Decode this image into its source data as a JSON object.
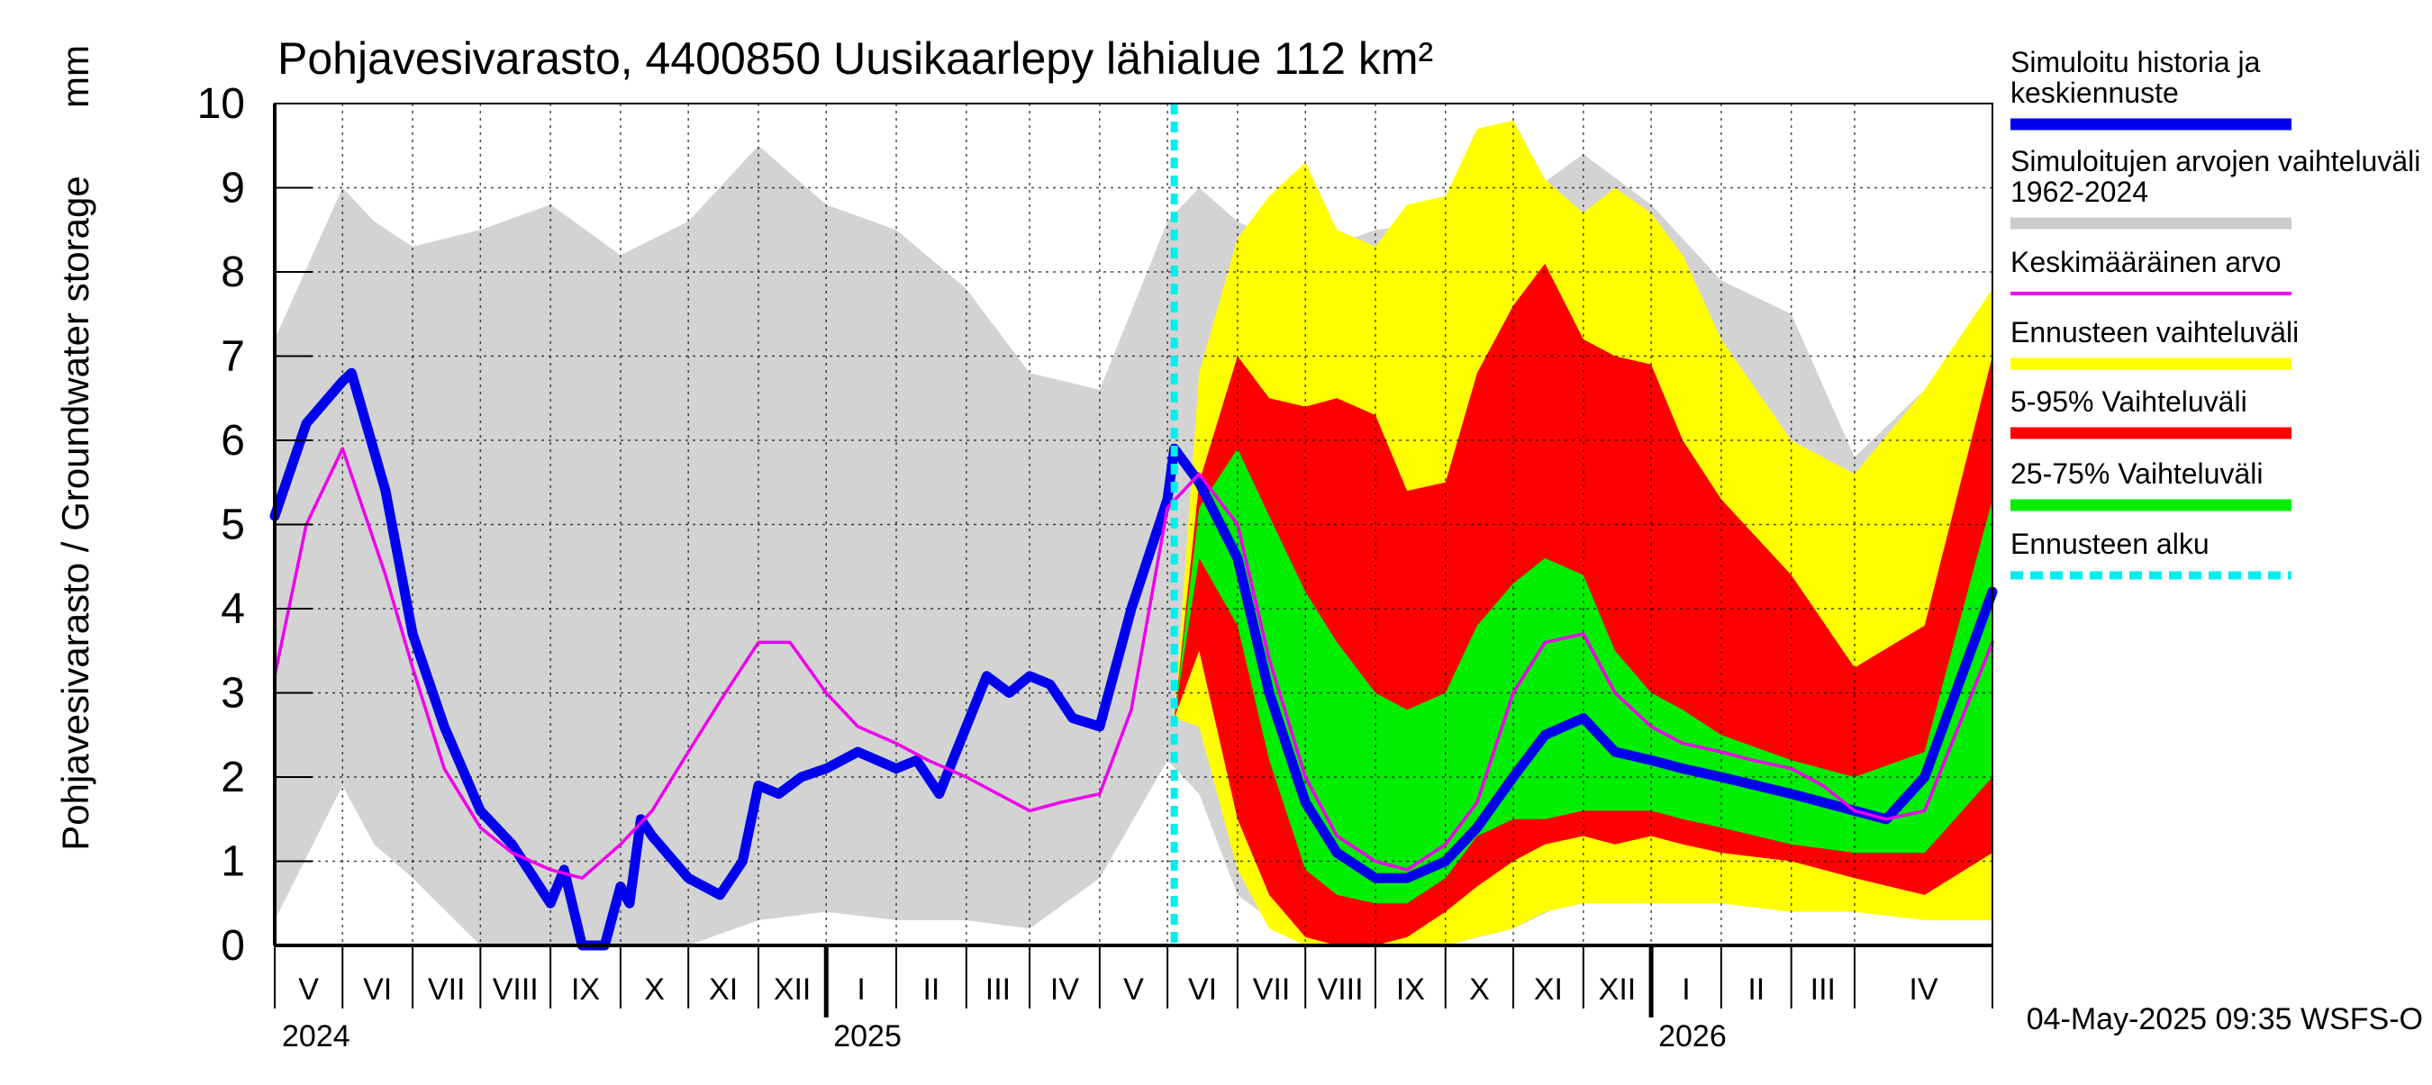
{
  "chart_data": {
    "type": "area",
    "title": "Pohjavesivarasto, 4400850 Uusikaarlepy lähialue 112 km²",
    "ylabel": "Pohjavesivarasto / Groundwater storage",
    "yunit": "mm",
    "ylim": [
      0,
      10
    ],
    "yticks": [
      0,
      1,
      2,
      3,
      4,
      5,
      6,
      7,
      8,
      9,
      10
    ],
    "xlim": [
      "2024-04-01",
      "2026-05-01"
    ],
    "forecast_start": "2025-05-04",
    "grid": true,
    "legend_position": "right",
    "footer": "04-May-2025 09:35 WSFS-O",
    "months": [
      {
        "label": "V",
        "start": "2024-04-01"
      },
      {
        "label": "VI",
        "start": "2024-05-01"
      },
      {
        "label": "VII",
        "start": "2024-06-01"
      },
      {
        "label": "VIII",
        "start": "2024-07-01"
      },
      {
        "label": "IX",
        "start": "2024-08-01"
      },
      {
        "label": "X",
        "start": "2024-09-01"
      },
      {
        "label": "XI",
        "start": "2024-10-01"
      },
      {
        "label": "XII",
        "start": "2024-11-01"
      },
      {
        "label": "I",
        "start": "2024-12-01"
      },
      {
        "label": "II",
        "start": "2025-01-01"
      },
      {
        "label": "III",
        "start": "2025-02-01"
      },
      {
        "label": "IV",
        "start": "2025-03-01"
      },
      {
        "label": "V",
        "start": "2025-04-01"
      },
      {
        "label": "VI",
        "start": "2025-05-01"
      },
      {
        "label": "VII",
        "start": "2025-06-01"
      },
      {
        "label": "VIII",
        "start": "2025-07-01"
      },
      {
        "label": "IX",
        "start": "2025-08-01"
      },
      {
        "label": "X",
        "start": "2025-09-01"
      },
      {
        "label": "XI",
        "start": "2025-10-01"
      },
      {
        "label": "XII",
        "start": "2025-11-01"
      },
      {
        "label": "I",
        "start": "2025-12-01"
      },
      {
        "label": "II",
        "start": "2026-01-01"
      },
      {
        "label": "III",
        "start": "2026-02-01"
      },
      {
        "label": "IV",
        "start": "2026-03-01"
      }
    ],
    "years": [
      {
        "label": "2024",
        "start": "2024-04-01"
      },
      {
        "label": "2025",
        "start": "2024-12-01"
      },
      {
        "label": "2026",
        "start": "2025-12-01"
      }
    ],
    "legend": [
      {
        "label": "Simuloitu historia ja keskiennuste",
        "color": "#0000ee",
        "style": "thick"
      },
      {
        "label": "Simuloitujen arvojen vaihteluväli 1962-2024",
        "color": "#cccccc",
        "style": "thick"
      },
      {
        "label": "Keskimääräinen arvo",
        "color": "#ee00ee",
        "style": "thin"
      },
      {
        "label": "Ennusteen vaihteluväli",
        "color": "#ffff00",
        "style": "thick"
      },
      {
        "label": "5-95% Vaihteluväli",
        "color": "#ff0000",
        "style": "thick"
      },
      {
        "label": "25-75% Vaihteluväli",
        "color": "#00ee00",
        "style": "thick"
      },
      {
        "label": "Ennusteen alku",
        "color": "#00eeee",
        "style": "dashed"
      }
    ],
    "bands": [
      {
        "name": "Simuloitujen arvojen vaihteluväli 1962-2024",
        "color": "#d3d3d3",
        "x": [
          "2024-04-01",
          "2024-05-01",
          "2024-05-15",
          "2024-06-01",
          "2024-07-01",
          "2024-08-01",
          "2024-09-01",
          "2024-10-01",
          "2024-11-01",
          "2024-12-01",
          "2025-01-01",
          "2025-02-01",
          "2025-03-01",
          "2025-04-01",
          "2025-05-01",
          "2025-05-15",
          "2025-06-01",
          "2025-07-01",
          "2025-08-01",
          "2025-09-01",
          "2025-10-01",
          "2025-11-01",
          "2025-12-01",
          "2026-01-01",
          "2026-02-01",
          "2026-03-01",
          "2026-04-01",
          "2026-05-01"
        ],
        "upper": [
          7.2,
          9.0,
          8.6,
          8.3,
          8.5,
          8.8,
          8.2,
          8.6,
          9.5,
          8.8,
          8.5,
          7.8,
          6.8,
          6.6,
          8.6,
          9.0,
          8.6,
          8.2,
          8.5,
          8.6,
          8.8,
          9.4,
          8.8,
          7.9,
          7.5,
          5.8,
          6.6,
          7.2
        ],
        "lower": [
          0.3,
          1.9,
          1.2,
          0.8,
          0.0,
          0.0,
          0.0,
          0.0,
          0.3,
          0.4,
          0.3,
          0.3,
          0.2,
          0.8,
          2.2,
          1.8,
          0.6,
          0.0,
          0.0,
          0.0,
          0.2,
          0.6,
          0.7,
          0.7,
          0.6,
          0.5,
          0.4,
          0.3
        ]
      },
      {
        "name": "Ennusteen vaihteluväli",
        "color": "#ffff00",
        "x": [
          "2025-05-04",
          "2025-05-15",
          "2025-06-01",
          "2025-06-15",
          "2025-07-01",
          "2025-07-15",
          "2025-08-01",
          "2025-08-15",
          "2025-09-01",
          "2025-09-15",
          "2025-10-01",
          "2025-10-15",
          "2025-11-01",
          "2025-11-15",
          "2025-12-01",
          "2025-12-15",
          "2026-01-01",
          "2026-02-01",
          "2026-03-01",
          "2026-04-01",
          "2026-05-01"
        ],
        "upper": [
          2.7,
          6.8,
          8.4,
          8.9,
          9.3,
          8.5,
          8.3,
          8.8,
          8.9,
          9.7,
          9.8,
          9.1,
          8.7,
          9.0,
          8.7,
          8.2,
          7.2,
          6.0,
          5.6,
          6.6,
          7.8
        ],
        "lower": [
          2.7,
          2.6,
          0.9,
          0.2,
          0.0,
          0.0,
          0.0,
          0.0,
          0.0,
          0.1,
          0.2,
          0.4,
          0.5,
          0.5,
          0.5,
          0.5,
          0.5,
          0.4,
          0.4,
          0.3,
          0.3
        ]
      },
      {
        "name": "5-95% Vaihteluväli",
        "color": "#ff0000",
        "x": [
          "2025-05-04",
          "2025-05-15",
          "2025-06-01",
          "2025-06-15",
          "2025-07-01",
          "2025-07-15",
          "2025-08-01",
          "2025-08-15",
          "2025-09-01",
          "2025-09-15",
          "2025-10-01",
          "2025-10-15",
          "2025-11-01",
          "2025-11-15",
          "2025-12-01",
          "2025-12-15",
          "2026-01-01",
          "2026-02-01",
          "2026-03-01",
          "2026-04-01",
          "2026-05-01"
        ],
        "upper": [
          2.7,
          5.5,
          7.0,
          6.5,
          6.4,
          6.5,
          6.3,
          5.4,
          5.5,
          6.8,
          7.6,
          8.1,
          7.2,
          7.0,
          6.9,
          6.0,
          5.3,
          4.4,
          3.3,
          3.8,
          7.0
        ],
        "lower": [
          2.7,
          3.5,
          1.5,
          0.6,
          0.1,
          0.0,
          0.0,
          0.1,
          0.4,
          0.7,
          1.0,
          1.2,
          1.3,
          1.2,
          1.3,
          1.2,
          1.1,
          1.0,
          0.8,
          0.6,
          1.1
        ]
      },
      {
        "name": "25-75% Vaihteluväli",
        "color": "#00ee00",
        "x": [
          "2025-05-04",
          "2025-05-15",
          "2025-06-01",
          "2025-06-15",
          "2025-07-01",
          "2025-07-15",
          "2025-08-01",
          "2025-08-15",
          "2025-09-01",
          "2025-09-15",
          "2025-10-01",
          "2025-10-15",
          "2025-11-01",
          "2025-11-15",
          "2025-12-01",
          "2025-12-15",
          "2026-01-01",
          "2026-02-01",
          "2026-03-01",
          "2026-04-01",
          "2026-05-01"
        ],
        "upper": [
          2.7,
          5.2,
          5.9,
          5.1,
          4.2,
          3.6,
          3.0,
          2.8,
          3.0,
          3.8,
          4.3,
          4.6,
          4.4,
          3.5,
          3.0,
          2.8,
          2.5,
          2.2,
          2.0,
          2.3,
          5.3
        ],
        "lower": [
          2.7,
          4.6,
          3.8,
          2.2,
          0.9,
          0.6,
          0.5,
          0.5,
          0.8,
          1.3,
          1.5,
          1.5,
          1.6,
          1.6,
          1.6,
          1.5,
          1.4,
          1.2,
          1.1,
          1.1,
          2.0
        ]
      }
    ],
    "series": [
      {
        "name": "Simuloitu historia ja keskiennuste",
        "color": "#0000ee",
        "x": [
          "2024-04-01",
          "2024-04-15",
          "2024-05-01",
          "2024-05-05",
          "2024-05-20",
          "2024-06-01",
          "2024-06-15",
          "2024-07-01",
          "2024-07-15",
          "2024-08-01",
          "2024-08-07",
          "2024-08-15",
          "2024-08-25",
          "2024-09-01",
          "2024-09-05",
          "2024-09-10",
          "2024-09-15",
          "2024-10-01",
          "2024-10-15",
          "2024-10-20",
          "2024-10-25",
          "2024-11-01",
          "2024-11-10",
          "2024-11-20",
          "2024-12-01",
          "2024-12-15",
          "2025-01-01",
          "2025-01-10",
          "2025-01-20",
          "2025-02-01",
          "2025-02-10",
          "2025-02-20",
          "2025-03-01",
          "2025-03-10",
          "2025-03-20",
          "2025-04-01",
          "2025-04-15",
          "2025-05-01",
          "2025-05-04"
        ],
        "values": [
          5.1,
          6.2,
          6.7,
          6.8,
          5.4,
          3.7,
          2.6,
          1.6,
          1.2,
          0.5,
          0.9,
          0.0,
          0.0,
          0.7,
          0.5,
          1.5,
          1.3,
          0.8,
          0.6,
          0.8,
          1.0,
          1.9,
          1.8,
          2.0,
          2.1,
          2.3,
          2.1,
          2.2,
          1.8,
          2.6,
          3.2,
          3.0,
          3.2,
          3.1,
          2.7,
          2.6,
          4.0,
          5.3,
          5.9
        ]
      },
      {
        "name": "keskiennuste",
        "color": "#0000ee",
        "x": [
          "2025-05-04",
          "2025-05-15",
          "2025-06-01",
          "2025-06-15",
          "2025-07-01",
          "2025-07-15",
          "2025-08-01",
          "2025-08-15",
          "2025-09-01",
          "2025-09-15",
          "2025-10-01",
          "2025-10-15",
          "2025-11-01",
          "2025-11-15",
          "2025-12-01",
          "2025-12-15",
          "2026-01-01",
          "2026-02-01",
          "2026-03-01",
          "2026-03-15",
          "2026-04-01",
          "2026-05-01"
        ],
        "values": [
          5.9,
          5.5,
          4.6,
          3.0,
          1.7,
          1.1,
          0.8,
          0.8,
          1.0,
          1.4,
          2.0,
          2.5,
          2.7,
          2.3,
          2.2,
          2.1,
          2.0,
          1.8,
          1.6,
          1.5,
          2.0,
          4.2
        ]
      },
      {
        "name": "Keskimääräinen arvo",
        "color": "#ee00ee",
        "x": [
          "2024-04-01",
          "2024-04-15",
          "2024-05-01",
          "2024-05-20",
          "2024-06-01",
          "2024-06-15",
          "2024-07-01",
          "2024-07-15",
          "2024-08-01",
          "2024-08-15",
          "2024-09-01",
          "2024-09-15",
          "2024-10-01",
          "2024-10-15",
          "2024-11-01",
          "2024-11-15",
          "2024-12-01",
          "2024-12-15",
          "2025-01-01",
          "2025-01-15",
          "2025-02-01",
          "2025-02-15",
          "2025-03-01",
          "2025-03-15",
          "2025-04-01",
          "2025-04-15",
          "2025-05-01",
          "2025-05-15",
          "2025-06-01",
          "2025-06-15",
          "2025-07-01",
          "2025-07-15",
          "2025-08-01",
          "2025-08-15",
          "2025-09-01",
          "2025-09-15",
          "2025-10-01",
          "2025-10-15",
          "2025-11-01",
          "2025-11-15",
          "2025-12-01",
          "2025-12-15",
          "2026-01-01",
          "2026-01-15",
          "2026-02-01",
          "2026-02-15",
          "2026-03-01",
          "2026-03-15",
          "2026-04-01",
          "2026-05-01"
        ],
        "values": [
          3.2,
          5.0,
          5.9,
          4.4,
          3.3,
          2.1,
          1.4,
          1.1,
          0.9,
          0.8,
          1.2,
          1.6,
          2.3,
          2.9,
          3.6,
          3.6,
          3.0,
          2.6,
          2.4,
          2.2,
          2.0,
          1.8,
          1.6,
          1.7,
          1.8,
          2.8,
          5.2,
          5.6,
          5.0,
          3.4,
          2.0,
          1.3,
          1.0,
          0.9,
          1.2,
          1.7,
          3.0,
          3.6,
          3.7,
          3.0,
          2.6,
          2.4,
          2.3,
          2.2,
          2.1,
          1.9,
          1.6,
          1.5,
          1.6,
          3.6
        ]
      }
    ]
  }
}
